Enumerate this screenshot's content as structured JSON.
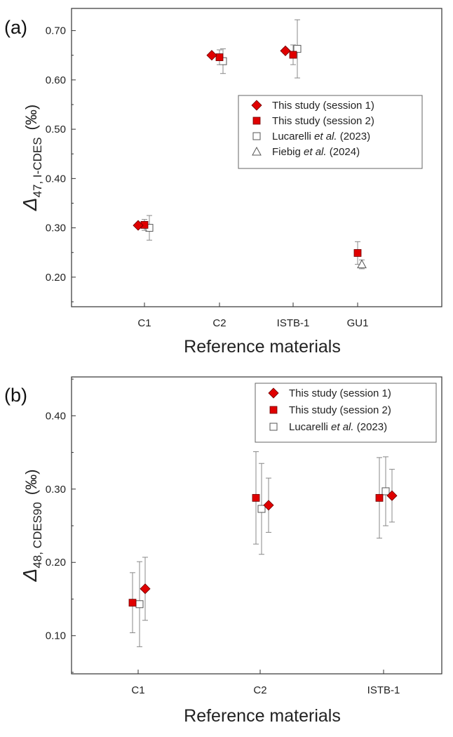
{
  "colors": {
    "marker_fill_red": "#e00000",
    "marker_stroke": "#6b0000",
    "open_marker_fill": "#ffffff",
    "open_marker_stroke": "#555555",
    "axis": "#333333",
    "errorbar": "#888888"
  },
  "chart_data": [
    {
      "panel_label": "(a)",
      "type": "scatter",
      "categories": [
        "C1",
        "C2",
        "ISTB-1",
        "GU1"
      ],
      "xlabel": "Reference materials",
      "ylabel": {
        "symbol": "Δ",
        "sub": "47, I-CDES",
        "unit": "(‰)"
      },
      "ylim": [
        0.14,
        0.745
      ],
      "yticks": [
        "0.20",
        "0.30",
        "0.40",
        "0.50",
        "0.60",
        "0.70"
      ],
      "grid": false,
      "legend_position": "center-right",
      "series": [
        {
          "name_plain": "This study (session 1)",
          "marker": "diamond-filled",
          "points": [
            {
              "category": "C1",
              "y": 0.305,
              "err": 0.005
            },
            {
              "category": "C2",
              "y": 0.65,
              "err": 0.004
            },
            {
              "category": "ISTB-1",
              "y": 0.659,
              "err": 0.005
            }
          ]
        },
        {
          "name_plain": "This study (session 2)",
          "marker": "square-filled",
          "points": [
            {
              "category": "C1",
              "y": 0.306,
              "err": 0.011
            },
            {
              "category": "C2",
              "y": 0.646,
              "err": 0.015
            },
            {
              "category": "ISTB-1",
              "y": 0.651,
              "err": 0.02
            },
            {
              "category": "GU1",
              "y": 0.249,
              "err": 0.023
            }
          ]
        },
        {
          "name_pre": "Lucarelli ",
          "name_italic": "et al.",
          "name_post": " (2023)",
          "marker": "square-open",
          "points": [
            {
              "category": "C1",
              "y": 0.3,
              "err": 0.025
            },
            {
              "category": "C2",
              "y": 0.638,
              "err": 0.025
            },
            {
              "category": "ISTB-1",
              "y": 0.663,
              "err": 0.059
            }
          ]
        },
        {
          "name_pre": "Fiebig ",
          "name_italic": "et al.",
          "name_post": " (2024)",
          "marker": "triangle-open",
          "points": [
            {
              "category": "GU1",
              "y": 0.226,
              "err": 0.009
            }
          ]
        }
      ]
    },
    {
      "panel_label": "(b)",
      "type": "scatter",
      "categories": [
        "C1",
        "C2",
        "ISTB-1"
      ],
      "xlabel": "Reference materials",
      "ylabel": {
        "symbol": "Δ",
        "sub": "48, CDES90",
        "unit": "(‰)"
      },
      "ylim": [
        0.048,
        0.453
      ],
      "yticks": [
        "0.10",
        "0.20",
        "0.30",
        "0.40"
      ],
      "grid": false,
      "legend_position": "top-right",
      "series": [
        {
          "name_plain": "This study (session 1)",
          "marker": "diamond-filled",
          "points": [
            {
              "category": "C1",
              "y": 0.164,
              "err": 0.043
            },
            {
              "category": "C2",
              "y": 0.278,
              "err": 0.037
            },
            {
              "category": "ISTB-1",
              "y": 0.291,
              "err": 0.036
            }
          ]
        },
        {
          "name_plain": "This study (session 2)",
          "marker": "square-filled",
          "points": [
            {
              "category": "C1",
              "y": 0.145,
              "err": 0.041
            },
            {
              "category": "C2",
              "y": 0.288,
              "err": 0.063
            },
            {
              "category": "ISTB-1",
              "y": 0.288,
              "err": 0.055
            }
          ]
        },
        {
          "name_pre": "Lucarelli ",
          "name_italic": "et al.",
          "name_post": " (2023)",
          "marker": "square-open",
          "points": [
            {
              "category": "C1",
              "y": 0.143,
              "err": 0.058
            },
            {
              "category": "C2",
              "y": 0.273,
              "err": 0.062
            },
            {
              "category": "ISTB-1",
              "y": 0.297,
              "err": 0.047
            }
          ]
        }
      ]
    }
  ]
}
